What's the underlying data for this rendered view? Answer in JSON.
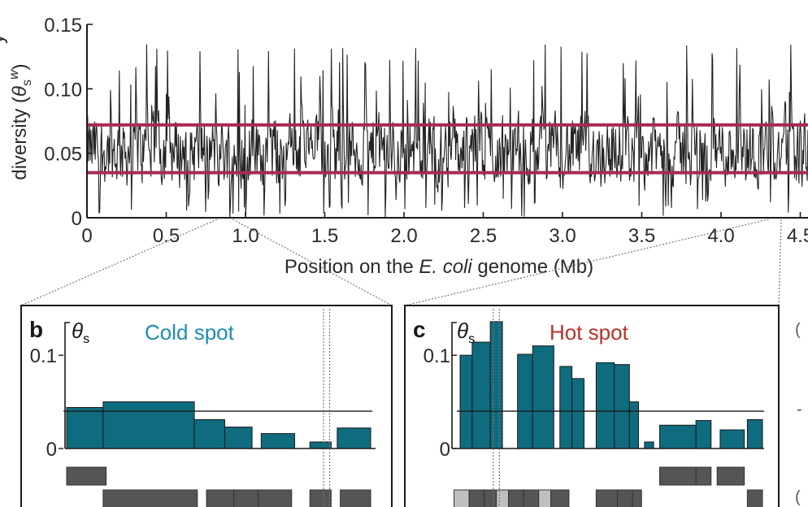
{
  "chart_data": [
    {
      "panel": "a",
      "type": "line",
      "ylabel_prefix": "diversity (",
      "ylabel_symbol": "θ",
      "ylabel_sub": "s",
      "ylabel_sup": "w",
      "ylabel_suffix": ")",
      "ylabel_partial": "y",
      "xlabel_prefix": "Position on the ",
      "xlabel_italic": "E. coli",
      "xlabel_suffix": " genome (Mb)",
      "xlim": [
        0,
        4.6
      ],
      "ylim": [
        0,
        0.15
      ],
      "xticks": [
        "0",
        "0.5",
        "1.0",
        "1.5",
        "2.0",
        "2.5",
        "3.0",
        "3.5",
        "4.0",
        "4.5"
      ],
      "xtick_values": [
        0,
        0.5,
        1.0,
        1.5,
        2.0,
        2.5,
        3.0,
        3.5,
        4.0,
        4.5
      ],
      "yticks": [
        "0",
        "0.05",
        "0.10",
        "0.15"
      ],
      "ytick_values": [
        0,
        0.05,
        0.1,
        0.15
      ],
      "series": [
        {
          "name": "θs window diversity",
          "color": "#222222",
          "n_points": 1150,
          "mean": 0.052,
          "min": 0.0,
          "max": 0.135
        }
      ],
      "threshold_lines": [
        {
          "name": "upper threshold",
          "y": 0.072,
          "color": "#a8294f"
        },
        {
          "name": "lower threshold",
          "y": 0.035,
          "color": "#a8294f"
        }
      ],
      "zoom_regions": [
        {
          "target": "b",
          "x": [
            0.82,
            0.92
          ]
        },
        {
          "target": "c",
          "x": [
            4.3,
            4.38
          ]
        }
      ]
    },
    {
      "panel": "b",
      "type": "bar",
      "letter": "b",
      "title": "Cold spot",
      "ylabel_symbol": "θ",
      "ylabel_sub": "s",
      "color": "#0f6b7e",
      "yticks": [
        "0",
        "0.1"
      ],
      "ytick_values": [
        0,
        0.1
      ],
      "ylim": [
        0,
        0.135
      ],
      "reference_line": 0.04,
      "bars": [
        {
          "x0": 0.0,
          "x1": 0.12,
          "value": 0.044
        },
        {
          "x0": 0.12,
          "x1": 0.42,
          "value": 0.05
        },
        {
          "x0": 0.42,
          "x1": 0.52,
          "value": 0.031
        },
        {
          "x0": 0.52,
          "x1": 0.61,
          "value": 0.023
        },
        {
          "x0": 0.64,
          "x1": 0.75,
          "value": 0.016
        },
        {
          "x0": 0.8,
          "x1": 0.87,
          "value": 0.007
        },
        {
          "x0": 0.89,
          "x1": 1.0,
          "value": 0.022
        }
      ],
      "genes_row1": [
        {
          "x0": 0.0,
          "x1": 0.13,
          "shade": "dark"
        }
      ],
      "genes_row2": [
        {
          "x0": 0.12,
          "x1": 0.43,
          "shade": "dark"
        },
        {
          "x0": 0.46,
          "x1": 0.55,
          "shade": "dark"
        },
        {
          "x0": 0.55,
          "x1": 0.63,
          "shade": "dark"
        },
        {
          "x0": 0.63,
          "x1": 0.74,
          "shade": "dark"
        },
        {
          "x0": 0.8,
          "x1": 0.87,
          "shade": "dark"
        },
        {
          "x0": 0.9,
          "x1": 1.0,
          "shade": "dark"
        }
      ],
      "marker_x": [
        0.845,
        0.865
      ]
    },
    {
      "panel": "c",
      "type": "bar",
      "letter": "c",
      "title": "Hot spot",
      "ylabel_symbol": "θ",
      "ylabel_sub": "s",
      "color": "#0f6b7e",
      "yticks": [
        "0",
        "0.1"
      ],
      "ytick_values": [
        0,
        0.1
      ],
      "ylim": [
        0,
        0.135
      ],
      "reference_line": 0.04,
      "bars": [
        {
          "x0": 0.0,
          "x1": 0.04,
          "value": 0.1
        },
        {
          "x0": 0.04,
          "x1": 0.1,
          "value": 0.114
        },
        {
          "x0": 0.1,
          "x1": 0.14,
          "value": 0.136
        },
        {
          "x0": 0.19,
          "x1": 0.24,
          "value": 0.101
        },
        {
          "x0": 0.24,
          "x1": 0.31,
          "value": 0.11
        },
        {
          "x0": 0.33,
          "x1": 0.37,
          "value": 0.088
        },
        {
          "x0": 0.37,
          "x1": 0.41,
          "value": 0.075
        },
        {
          "x0": 0.45,
          "x1": 0.51,
          "value": 0.092
        },
        {
          "x0": 0.51,
          "x1": 0.56,
          "value": 0.09
        },
        {
          "x0": 0.56,
          "x1": 0.59,
          "value": 0.05
        },
        {
          "x0": 0.61,
          "x1": 0.64,
          "value": 0.007
        },
        {
          "x0": 0.66,
          "x1": 0.78,
          "value": 0.025
        },
        {
          "x0": 0.78,
          "x1": 0.83,
          "value": 0.03
        },
        {
          "x0": 0.86,
          "x1": 0.94,
          "value": 0.02
        },
        {
          "x0": 0.95,
          "x1": 1.0,
          "value": 0.031
        }
      ],
      "genes_row1": [
        {
          "x0": 0.66,
          "x1": 0.78,
          "shade": "dark"
        },
        {
          "x0": 0.78,
          "x1": 0.83,
          "shade": "dark"
        },
        {
          "x0": 0.85,
          "x1": 0.94,
          "shade": "dark"
        }
      ],
      "genes_row2": [
        {
          "x0": -0.02,
          "x1": 0.03,
          "shade": "light"
        },
        {
          "x0": 0.03,
          "x1": 0.08,
          "shade": "dark"
        },
        {
          "x0": 0.08,
          "x1": 0.12,
          "shade": "dark"
        },
        {
          "x0": 0.12,
          "x1": 0.16,
          "shade": "light"
        },
        {
          "x0": 0.16,
          "x1": 0.21,
          "shade": "dark"
        },
        {
          "x0": 0.21,
          "x1": 0.26,
          "shade": "dark"
        },
        {
          "x0": 0.26,
          "x1": 0.3,
          "shade": "light"
        },
        {
          "x0": 0.3,
          "x1": 0.36,
          "shade": "dark"
        },
        {
          "x0": 0.45,
          "x1": 0.52,
          "shade": "dark"
        },
        {
          "x0": 0.52,
          "x1": 0.57,
          "shade": "dark"
        },
        {
          "x0": 0.57,
          "x1": 0.6,
          "shade": "dark"
        },
        {
          "x0": 0.95,
          "x1": 1.0,
          "shade": "dark"
        }
      ],
      "marker_x": [
        0.11,
        0.13
      ]
    }
  ],
  "colors": {
    "trace": "#222222",
    "threshold": "#a8294f",
    "bar": "#0f6b7e",
    "gene_dark": "#555555",
    "gene_light": "#bfbfbf"
  },
  "edge_fragments": [
    "(",
    "-",
    "("
  ]
}
